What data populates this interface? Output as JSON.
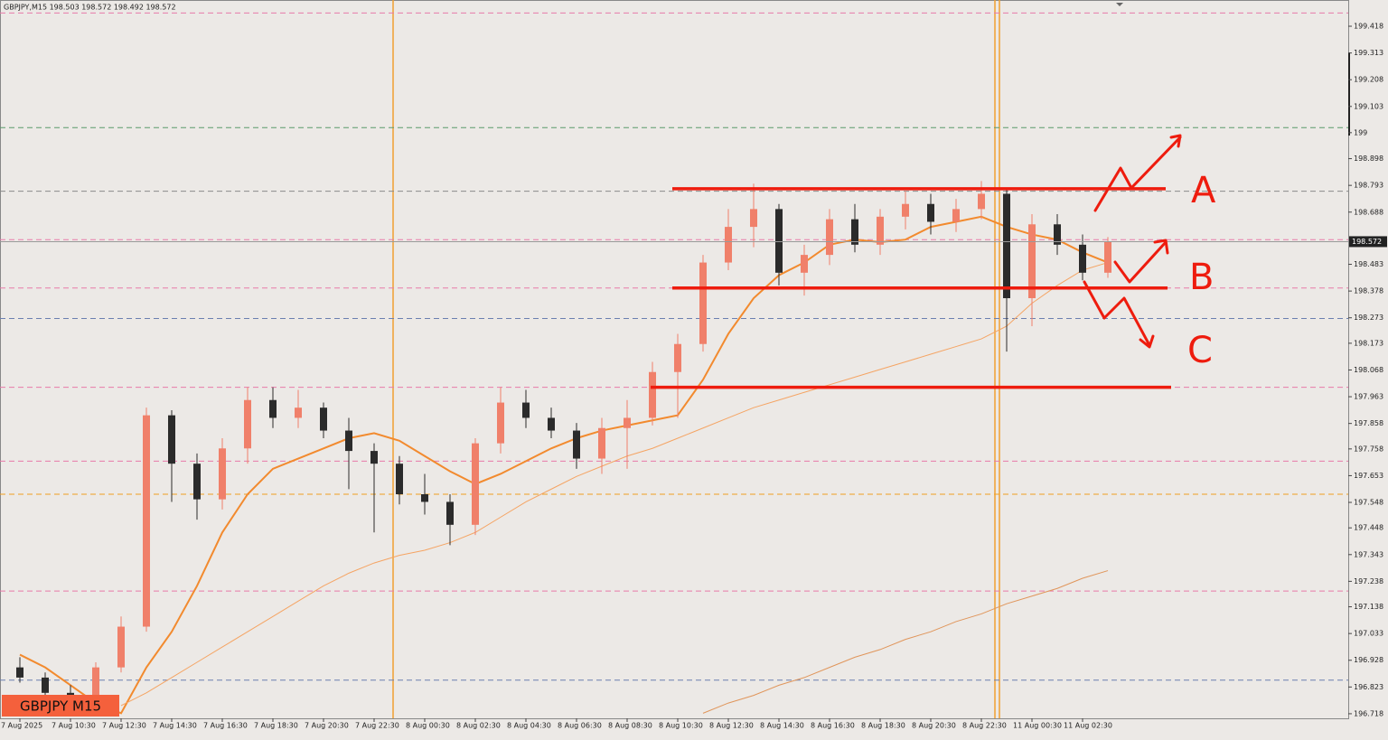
{
  "chart_data": {
    "type": "candlestick",
    "title": "GBPJPY,M15  198.503 198.572 198.492 198.572",
    "watermark": "GBPJPY M15",
    "current_price": 198.572,
    "categories": [
      "7 Aug 2025",
      null,
      "7 Aug 10:30",
      null,
      "7 Aug 12:30",
      null,
      "7 Aug 14:30",
      null,
      "7 Aug 16:30",
      null,
      "7 Aug 18:30",
      null,
      "7 Aug 20:30",
      null,
      "7 Aug 22:30",
      null,
      "8 Aug 00:30",
      null,
      "8 Aug 02:30",
      null,
      "8 Aug 04:30",
      null,
      "8 Aug 06:30",
      null,
      "8 Aug 08:30",
      null,
      "8 Aug 10:30",
      null,
      "8 Aug 12:30",
      null,
      "8 Aug 14:30",
      null,
      "8 Aug 16:30",
      null,
      "8 Aug 18:30",
      null,
      "8 Aug 20:30",
      null,
      "8 Aug 22:30",
      null,
      "11 Aug 00:30",
      null,
      "11 Aug 02:30",
      null
    ],
    "open": [
      196.9,
      196.86,
      196.8,
      196.76,
      196.9,
      197.06,
      197.89,
      197.7,
      197.56,
      197.76,
      197.95,
      197.88,
      197.92,
      197.83,
      197.75,
      197.7,
      197.58,
      197.55,
      197.46,
      197.78,
      197.94,
      197.88,
      197.83,
      197.72,
      197.84,
      197.88,
      198.06,
      198.17,
      198.49,
      198.63,
      198.7,
      198.45,
      198.52,
      198.66,
      198.56,
      198.67,
      198.72,
      198.65,
      198.7,
      198.76,
      198.35,
      198.64,
      198.56,
      198.45
    ],
    "high": [
      196.94,
      196.88,
      196.83,
      196.92,
      197.1,
      197.92,
      197.91,
      197.74,
      197.8,
      198.0,
      198.0,
      197.99,
      197.94,
      197.88,
      197.78,
      197.73,
      197.66,
      197.58,
      197.8,
      198.0,
      197.99,
      197.92,
      197.86,
      197.88,
      197.95,
      198.1,
      198.21,
      198.52,
      198.7,
      198.8,
      198.72,
      198.56,
      198.7,
      198.72,
      198.7,
      198.77,
      198.76,
      198.74,
      198.81,
      198.78,
      198.68,
      198.68,
      198.6,
      198.59
    ],
    "low": [
      196.84,
      196.78,
      196.72,
      196.74,
      196.88,
      197.04,
      197.55,
      197.48,
      197.52,
      197.7,
      197.84,
      197.84,
      197.8,
      197.6,
      197.43,
      197.54,
      197.5,
      197.38,
      197.42,
      197.74,
      197.84,
      197.8,
      197.68,
      197.66,
      197.68,
      197.85,
      197.88,
      198.14,
      198.46,
      198.55,
      198.4,
      198.36,
      198.48,
      198.53,
      198.52,
      198.62,
      198.6,
      198.61,
      198.66,
      198.14,
      198.24,
      198.52,
      198.42,
      198.43
    ],
    "close": [
      196.86,
      196.8,
      196.76,
      196.9,
      197.06,
      197.89,
      197.7,
      197.56,
      197.76,
      197.95,
      197.88,
      197.92,
      197.83,
      197.75,
      197.7,
      197.58,
      197.55,
      197.46,
      197.78,
      197.94,
      197.88,
      197.83,
      197.72,
      197.84,
      197.88,
      198.06,
      198.17,
      198.49,
      198.63,
      198.7,
      198.45,
      198.52,
      198.66,
      198.56,
      198.67,
      198.72,
      198.65,
      198.7,
      198.76,
      198.35,
      198.64,
      198.56,
      198.45,
      198.572
    ],
    "up_color": "#f0806a",
    "down_color": "#2b2b2b",
    "lines": [
      {
        "color": "#f28a2e",
        "width": 2,
        "values": [
          196.95,
          196.9,
          196.83,
          196.76,
          196.72,
          196.9,
          197.04,
          197.22,
          197.43,
          197.58,
          197.68,
          197.72,
          197.76,
          197.8,
          197.82,
          197.79,
          197.73,
          197.67,
          197.62,
          197.66,
          197.71,
          197.76,
          197.8,
          197.83,
          197.85,
          197.87,
          197.89,
          198.03,
          198.21,
          198.35,
          198.44,
          198.49,
          198.56,
          198.58,
          198.57,
          198.58,
          198.63,
          198.65,
          198.67,
          198.63,
          198.6,
          198.58,
          198.53,
          198.49
        ]
      },
      {
        "color": "#f5a463",
        "width": 1,
        "values": [
          null,
          null,
          null,
          null,
          196.75,
          196.8,
          196.86,
          196.92,
          196.98,
          197.04,
          197.1,
          197.16,
          197.22,
          197.27,
          197.31,
          197.34,
          197.36,
          197.39,
          197.43,
          197.49,
          197.55,
          197.6,
          197.65,
          197.69,
          197.73,
          197.76,
          197.8,
          197.84,
          197.88,
          197.92,
          197.95,
          197.98,
          198.01,
          198.04,
          198.07,
          198.1,
          198.13,
          198.16,
          198.19,
          198.24,
          198.33,
          198.4,
          198.46,
          198.49
        ]
      },
      {
        "color": "#e0955a",
        "width": 1,
        "values": [
          null,
          null,
          null,
          null,
          null,
          null,
          null,
          null,
          null,
          null,
          null,
          null,
          null,
          null,
          null,
          null,
          null,
          null,
          null,
          null,
          null,
          null,
          null,
          null,
          null,
          null,
          null,
          196.72,
          196.76,
          196.79,
          196.83,
          196.86,
          196.9,
          196.94,
          196.97,
          197.01,
          197.04,
          197.08,
          197.11,
          197.15,
          197.18,
          197.21,
          197.25,
          197.28
        ]
      }
    ],
    "levels": [
      {
        "value": 199.47,
        "color": "#e87aa8"
      },
      {
        "value": 199.02,
        "color": "#5a9a6a"
      },
      {
        "value": 198.77,
        "color": "#8a8a8a"
      },
      {
        "value": 198.58,
        "color": "#e87aa8"
      },
      {
        "value": 198.39,
        "color": "#e87aa8"
      },
      {
        "value": 198.27,
        "color": "#6b7fb0"
      },
      {
        "value": 198.0,
        "color": "#e87aa8"
      },
      {
        "value": 197.71,
        "color": "#e87aa8"
      },
      {
        "value": 197.58,
        "color": "#f0a020"
      },
      {
        "value": 197.2,
        "color": "#e87aa8"
      },
      {
        "value": 196.85,
        "color": "#6b7fb0"
      }
    ],
    "zones": [
      198.78,
      198.39,
      198.0
    ],
    "zone_color": "#ee1c0e",
    "scenario_labels": [
      "A",
      "B",
      "C"
    ],
    "ylim": [
      196.7,
      199.521
    ],
    "yticks": [
      199.418,
      199.313,
      199.208,
      199.103,
      199.0,
      198.898,
      198.793,
      198.688,
      198.483,
      198.378,
      198.273,
      198.173,
      198.068,
      197.963,
      197.858,
      197.758,
      197.653,
      197.548,
      197.448,
      197.343,
      197.238,
      197.138,
      197.033,
      196.928,
      196.823,
      196.718
    ]
  }
}
